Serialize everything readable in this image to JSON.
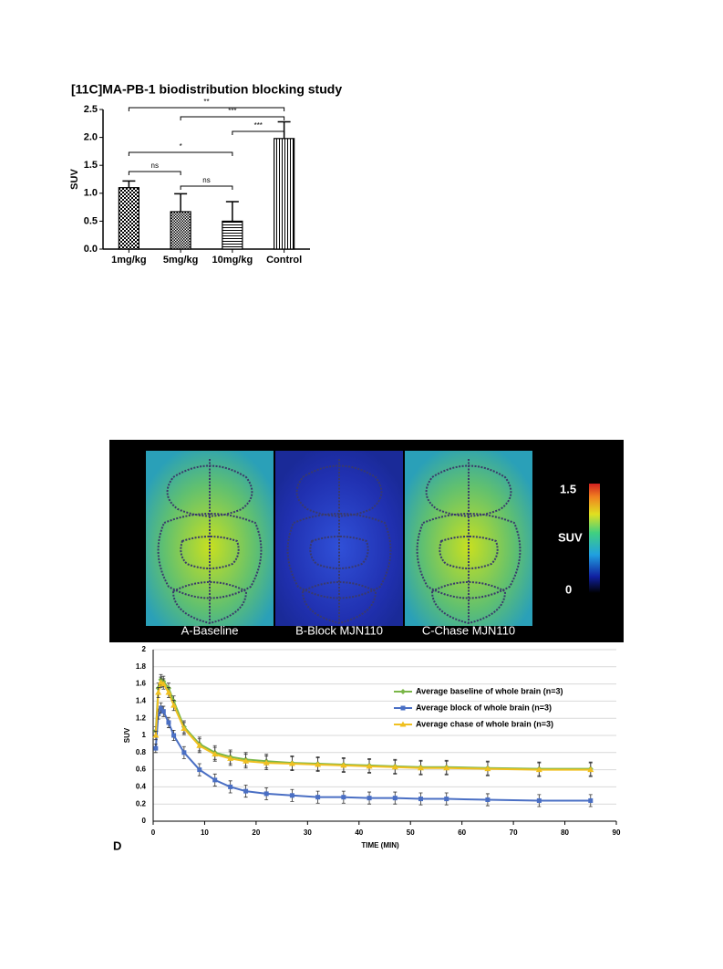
{
  "chart_data": [
    {
      "type": "bar",
      "title": "[11C]MA-PB-1 biodistribution blocking study",
      "ylabel": "SUV",
      "categories": [
        "1mg/kg",
        "5mg/kg",
        "10mg/kg",
        "Control"
      ],
      "values": [
        1.1,
        0.67,
        0.5,
        1.98
      ],
      "errors": [
        0.12,
        0.32,
        0.35,
        0.3
      ],
      "patterns": [
        "checker",
        "dense-checker",
        "horizontal",
        "vertical"
      ],
      "color": "#000000",
      "ylim": [
        0,
        2.5
      ],
      "yticks": [
        {
          "value": 0,
          "label": "0.0"
        },
        {
          "value": 0.5,
          "label": "0.5"
        },
        {
          "value": 1,
          "label": "1.0"
        },
        {
          "value": 1.5,
          "label": "1.5"
        },
        {
          "value": 2,
          "label": "2.0"
        },
        {
          "value": 2.5,
          "label": "2.5"
        }
      ],
      "brackets": [
        {
          "from": 0,
          "to": 3,
          "label": "**"
        },
        {
          "from": 1,
          "to": 3,
          "label": "***"
        },
        {
          "from": 2,
          "to": 3,
          "label": "***"
        },
        {
          "from": 0,
          "to": 2,
          "label": "*"
        },
        {
          "from": 0,
          "to": 1,
          "label": "ns"
        },
        {
          "from": 1,
          "to": 2,
          "label": "ns"
        }
      ]
    },
    {
      "type": "line",
      "panel": "D",
      "xlabel": "TIME (MIN)",
      "ylabel": "SUV",
      "x": [
        0.5,
        1,
        1.5,
        2,
        3,
        4,
        6,
        9,
        12,
        15,
        18,
        22,
        27,
        32,
        37,
        42,
        47,
        52,
        57,
        65,
        75,
        85
      ],
      "series": [
        {
          "name": "Average baseline of whole brain (n=3)",
          "color": "#7ab648",
          "marker": "diamond",
          "values": [
            1.05,
            1.55,
            1.65,
            1.63,
            1.55,
            1.4,
            1.1,
            0.9,
            0.8,
            0.75,
            0.72,
            0.7,
            0.68,
            0.67,
            0.66,
            0.65,
            0.64,
            0.63,
            0.63,
            0.62,
            0.61,
            0.61
          ],
          "errors": [
            0.05,
            0.06,
            0.06,
            0.06,
            0.06,
            0.06,
            0.07,
            0.08,
            0.08,
            0.08,
            0.08,
            0.08,
            0.08,
            0.08,
            0.08,
            0.08,
            0.08,
            0.08,
            0.08,
            0.08,
            0.08,
            0.08
          ]
        },
        {
          "name": "Average block of whole brain (n=3)",
          "color": "#4a6fc4",
          "marker": "square",
          "values": [
            0.85,
            1.25,
            1.32,
            1.28,
            1.15,
            1.0,
            0.8,
            0.6,
            0.48,
            0.4,
            0.35,
            0.32,
            0.3,
            0.28,
            0.28,
            0.27,
            0.27,
            0.26,
            0.26,
            0.25,
            0.24,
            0.24
          ],
          "errors": [
            0.05,
            0.06,
            0.06,
            0.06,
            0.06,
            0.06,
            0.07,
            0.07,
            0.07,
            0.07,
            0.07,
            0.07,
            0.07,
            0.07,
            0.07,
            0.07,
            0.07,
            0.07,
            0.07,
            0.07,
            0.07,
            0.07
          ]
        },
        {
          "name": "Average chase of whole brain (n=3)",
          "color": "#f0c020",
          "marker": "triangle",
          "values": [
            1.0,
            1.5,
            1.62,
            1.6,
            1.5,
            1.35,
            1.08,
            0.88,
            0.78,
            0.73,
            0.7,
            0.68,
            0.67,
            0.66,
            0.65,
            0.64,
            0.63,
            0.62,
            0.62,
            0.61,
            0.6,
            0.6
          ],
          "errors": [
            0.05,
            0.06,
            0.06,
            0.06,
            0.06,
            0.06,
            0.07,
            0.08,
            0.08,
            0.08,
            0.08,
            0.08,
            0.08,
            0.08,
            0.08,
            0.08,
            0.08,
            0.08,
            0.08,
            0.08,
            0.08,
            0.08
          ]
        }
      ],
      "xlim": [
        0,
        90
      ],
      "xticks": [
        0,
        10,
        20,
        30,
        40,
        50,
        60,
        70,
        80,
        90
      ],
      "ylim": [
        0,
        2
      ],
      "yticks": [
        0,
        0.2,
        0.4,
        0.6,
        0.8,
        1,
        1.2,
        1.4,
        1.6,
        1.8,
        2
      ],
      "grid": true
    }
  ],
  "figure": {
    "panels": [
      "A-Baseline",
      "B-Block MJN110",
      "C-Chase MJN110"
    ],
    "colorbar": {
      "max": 1.5,
      "label": "SUV",
      "min": 0
    }
  }
}
